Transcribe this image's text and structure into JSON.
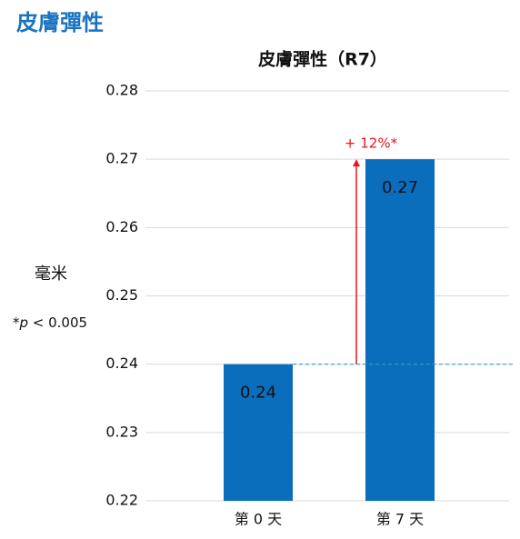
{
  "header": {
    "title": "皮膚彈性"
  },
  "chart_data": {
    "type": "bar",
    "title": "皮膚彈性（R7）",
    "y_label": "毫米",
    "note": {
      "prefix": "*",
      "var": "p",
      "suffix": " < 0.005"
    },
    "categories": [
      "第 0 天",
      "第 7 天"
    ],
    "values": [
      0.24,
      0.27
    ],
    "color": "#0a6ebd",
    "ylim": [
      0.22,
      0.28
    ],
    "yticks": [
      0.22,
      0.23,
      0.24,
      0.25,
      0.26,
      0.27,
      0.28
    ],
    "grid": true,
    "reference_line": 0.24,
    "annotation": "+ 12%*",
    "annotation_color": "#e8141c"
  }
}
